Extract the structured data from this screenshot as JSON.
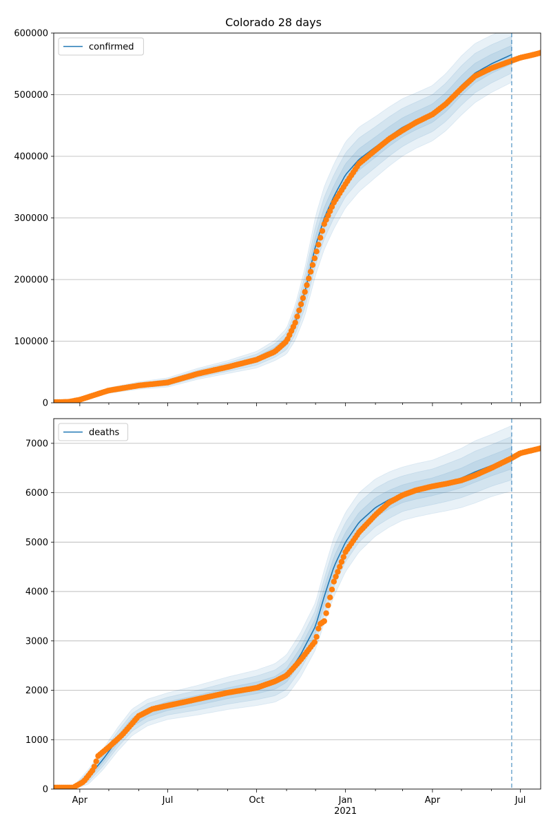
{
  "title": "Colorado 28 days",
  "chart_data": [
    {
      "type": "line",
      "title": "Colorado 28 days",
      "xlabel": "",
      "ylabel": "",
      "x_ticks": [
        "Apr",
        "Jul",
        "Oct",
        "Jan",
        "Apr",
        "Jul"
      ],
      "x_year_label": "2021",
      "y_ticks": [
        "0",
        "100000",
        "200000",
        "300000",
        "400000",
        "500000",
        "600000"
      ],
      "ylim": [
        0,
        600000
      ],
      "grid": "horizontal",
      "legend": {
        "placement": "top-left",
        "entries": [
          "confirmed"
        ]
      },
      "vertical_marker": "2021-06-22",
      "series": [
        {
          "name": "confirmed",
          "role": "model",
          "color": "#1f77b4",
          "x": [
            "2020-03-05",
            "2020-04-01",
            "2020-05-01",
            "2020-06-01",
            "2020-07-01",
            "2020-08-01",
            "2020-09-01",
            "2020-10-01",
            "2020-10-20",
            "2020-11-01",
            "2020-11-10",
            "2020-11-20",
            "2020-12-01",
            "2020-12-10",
            "2020-12-20",
            "2021-01-01",
            "2021-01-15",
            "2021-02-01",
            "2021-02-15",
            "2021-03-01",
            "2021-03-15",
            "2021-04-01",
            "2021-04-15",
            "2021-05-01",
            "2021-05-15",
            "2021-06-01",
            "2021-06-22"
          ],
          "values": [
            0,
            5000,
            20000,
            28000,
            33000,
            47000,
            58000,
            70000,
            85000,
            100000,
            130000,
            180000,
            255000,
            300000,
            335000,
            370000,
            395000,
            415000,
            432000,
            447000,
            458000,
            470000,
            488000,
            515000,
            535000,
            550000,
            565000
          ]
        },
        {
          "name": "observed confirmed",
          "role": "observed",
          "color": "#ff7f0e",
          "x": [
            "2020-03-05",
            "2020-03-20",
            "2020-04-01",
            "2020-04-15",
            "2020-05-01",
            "2020-06-01",
            "2020-07-01",
            "2020-08-01",
            "2020-09-01",
            "2020-10-01",
            "2020-10-20",
            "2020-11-01",
            "2020-11-10",
            "2020-11-20",
            "2020-12-01",
            "2020-12-10",
            "2020-12-20",
            "2021-01-01",
            "2021-01-15",
            "2021-02-01",
            "2021-02-15",
            "2021-03-01",
            "2021-03-15",
            "2021-04-01",
            "2021-04-15",
            "2021-05-01",
            "2021-05-15",
            "2021-06-01",
            "2021-06-22",
            "2021-07-01",
            "2021-07-15",
            "2021-07-22"
          ],
          "values": [
            1000,
            1500,
            5000,
            12000,
            20000,
            28000,
            33000,
            47000,
            58000,
            70000,
            83000,
            100000,
            130000,
            180000,
            240000,
            290000,
            325000,
            355000,
            388000,
            410000,
            428000,
            442000,
            455000,
            468000,
            485000,
            510000,
            530000,
            543000,
            555000,
            560000,
            565000,
            568000
          ]
        }
      ],
      "band_widths": [
        [
          0,
          500,
          1500,
          2000,
          2500,
          3000,
          3500,
          4500,
          5500,
          7000,
          9500,
          13000,
          16000,
          17000,
          17500,
          18000,
          17500,
          16500,
          16000,
          15500,
          15000,
          15000,
          15500,
          16000,
          16000,
          15500,
          15000
        ],
        [
          0,
          1000,
          3000,
          4000,
          5000,
          6000,
          7000,
          9000,
          11000,
          14000,
          19000,
          26000,
          32000,
          34000,
          35000,
          35500,
          35000,
          33000,
          32000,
          31000,
          30000,
          30000,
          31000,
          32000,
          32000,
          31000,
          30000
        ],
        [
          0,
          1600,
          4500,
          6000,
          7500,
          9000,
          10500,
          13500,
          16500,
          21000,
          28500,
          39000,
          48000,
          51000,
          52500,
          53500,
          52500,
          49500,
          48000,
          46500,
          45000,
          45000,
          46500,
          48000,
          48000,
          46500,
          45000
        ]
      ]
    },
    {
      "type": "line",
      "title": "",
      "xlabel": "",
      "ylabel": "",
      "x_ticks": [
        "Apr",
        "Jul",
        "Oct",
        "Jan",
        "Apr",
        "Jul"
      ],
      "x_year_label": "2021",
      "y_ticks": [
        "0",
        "1000",
        "2000",
        "3000",
        "4000",
        "5000",
        "6000",
        "7000"
      ],
      "ylim": [
        0,
        7500
      ],
      "grid": "horizontal",
      "legend": {
        "placement": "top-left",
        "entries": [
          "deaths"
        ]
      },
      "vertical_marker": "2021-06-22",
      "series": [
        {
          "name": "deaths",
          "role": "model",
          "color": "#1f77b4",
          "x": [
            "2020-03-05",
            "2020-03-25",
            "2020-04-10",
            "2020-04-25",
            "2020-05-10",
            "2020-05-25",
            "2020-06-10",
            "2020-07-01",
            "2020-08-01",
            "2020-09-01",
            "2020-10-01",
            "2020-10-20",
            "2020-11-01",
            "2020-11-15",
            "2020-12-01",
            "2020-12-10",
            "2020-12-20",
            "2021-01-01",
            "2021-01-15",
            "2021-02-01",
            "2021-02-15",
            "2021-03-01",
            "2021-03-15",
            "2021-04-01",
            "2021-04-15",
            "2021-05-01",
            "2021-05-15",
            "2021-06-01",
            "2021-06-22"
          ],
          "values": [
            0,
            20,
            250,
            600,
            1000,
            1350,
            1550,
            1680,
            1800,
            1940,
            2050,
            2150,
            2300,
            2700,
            3300,
            3900,
            4500,
            5000,
            5400,
            5700,
            5860,
            5980,
            6050,
            6120,
            6200,
            6300,
            6420,
            6550,
            6700
          ]
        },
        {
          "name": "observed deaths",
          "role": "observed",
          "color": "#ff7f0e",
          "x": [
            "2020-03-05",
            "2020-03-25",
            "2020-04-05",
            "2020-04-15",
            "2020-04-20",
            "2020-05-01",
            "2020-05-15",
            "2020-06-01",
            "2020-06-15",
            "2020-07-01",
            "2020-08-01",
            "2020-09-01",
            "2020-10-01",
            "2020-10-20",
            "2020-11-01",
            "2020-11-15",
            "2020-12-01",
            "2020-12-05",
            "2020-12-10",
            "2020-12-20",
            "2021-01-01",
            "2021-01-15",
            "2021-02-01",
            "2021-02-15",
            "2021-03-01",
            "2021-03-15",
            "2021-04-01",
            "2021-04-15",
            "2021-05-01",
            "2021-05-15",
            "2021-06-01",
            "2021-06-22",
            "2021-07-01",
            "2021-07-22"
          ],
          "values": [
            30,
            30,
            150,
            400,
            670,
            850,
            1100,
            1480,
            1620,
            1690,
            1820,
            1950,
            2050,
            2180,
            2300,
            2600,
            3000,
            3330,
            3400,
            4200,
            4800,
            5200,
            5550,
            5800,
            5950,
            6050,
            6130,
            6180,
            6250,
            6350,
            6500,
            6700,
            6800,
            6900
          ]
        }
      ],
      "band_widths": [
        [
          0,
          10,
          50,
          70,
          80,
          90,
          90,
          90,
          100,
          110,
          120,
          130,
          140,
          150,
          160,
          180,
          200,
          200,
          200,
          200,
          190,
          180,
          180,
          180,
          190,
          200,
          210,
          210,
          220
        ],
        [
          0,
          20,
          100,
          140,
          160,
          180,
          180,
          180,
          200,
          220,
          240,
          260,
          280,
          300,
          320,
          360,
          400,
          400,
          400,
          390,
          380,
          360,
          360,
          360,
          380,
          400,
          420,
          420,
          440
        ],
        [
          0,
          30,
          150,
          210,
          240,
          270,
          270,
          270,
          300,
          330,
          360,
          390,
          420,
          450,
          480,
          540,
          600,
          600,
          600,
          580,
          560,
          540,
          540,
          540,
          570,
          600,
          630,
          630,
          660
        ]
      ]
    }
  ]
}
